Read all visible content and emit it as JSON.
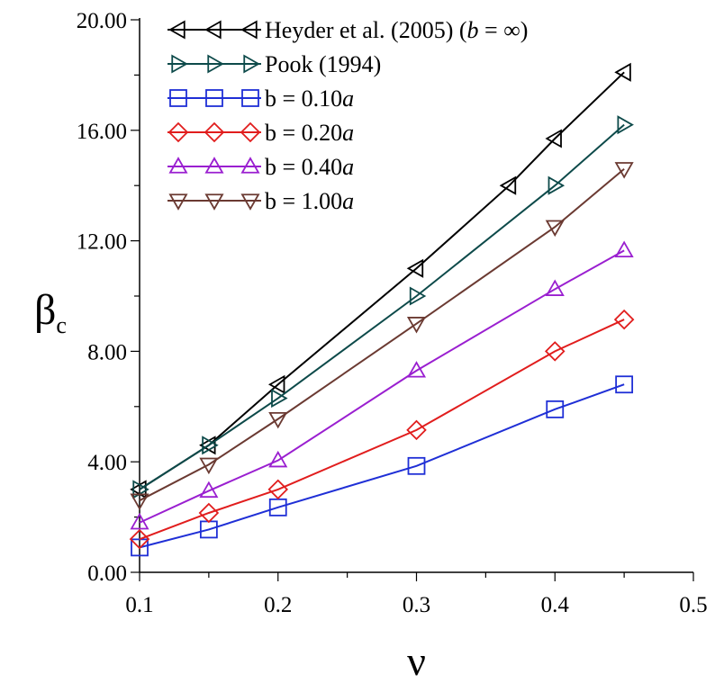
{
  "chart_data": {
    "type": "line",
    "xlabel": "ν",
    "ylabel": {
      "base": "β",
      "subscript": "c"
    },
    "xlim": [
      0.1,
      0.5
    ],
    "ylim": [
      0,
      20
    ],
    "xticks": [
      0.1,
      0.2,
      0.3,
      0.4,
      0.5
    ],
    "yticks": [
      0,
      4,
      8,
      12,
      16,
      20
    ],
    "xtick_labels": [
      "0.1",
      "0.2",
      "0.3",
      "0.4",
      "0.5"
    ],
    "ytick_labels": [
      "0.00",
      "4.00",
      "8.00",
      "12.00",
      "16.00",
      "20.00"
    ],
    "grid": false,
    "legend_placement": "top-left",
    "series": [
      {
        "name": "Heyder et al. (2005) (b = ∞)",
        "legend_parts": [
          {
            "text": "Heyder et al. (2005) (",
            "italic": false
          },
          {
            "text": "b",
            "italic": true
          },
          {
            "text": " = ∞)",
            "italic": false
          }
        ],
        "color": "#000000",
        "marker": "triangle-left",
        "x": [
          0.1,
          0.15,
          0.2,
          0.3,
          0.367,
          0.4,
          0.45
        ],
        "y": [
          3.0,
          4.6,
          6.8,
          11.0,
          14.0,
          15.7,
          18.1
        ]
      },
      {
        "name": "Pook (1994)",
        "legend_parts": [
          {
            "text": "Pook (1994)",
            "italic": false
          }
        ],
        "color": "#0d4a4a",
        "marker": "triangle-right",
        "x": [
          0.1,
          0.15,
          0.2,
          0.3,
          0.4,
          0.45
        ],
        "y": [
          3.0,
          4.6,
          6.3,
          10.0,
          14.0,
          16.2
        ]
      },
      {
        "name": "b = 0.10a",
        "legend_parts": [
          {
            "text": "b = 0.10",
            "italic": false
          },
          {
            "text": "a",
            "italic": true
          }
        ],
        "color": "#1f2fd6",
        "marker": "square",
        "x": [
          0.1,
          0.15,
          0.2,
          0.3,
          0.4,
          0.45
        ],
        "y": [
          0.9,
          1.55,
          2.35,
          3.85,
          5.9,
          6.8
        ]
      },
      {
        "name": "b = 0.20a",
        "legend_parts": [
          {
            "text": "b = 0.20",
            "italic": false
          },
          {
            "text": "a",
            "italic": true
          }
        ],
        "color": "#e11d1d",
        "marker": "diamond",
        "x": [
          0.1,
          0.15,
          0.2,
          0.3,
          0.4,
          0.45
        ],
        "y": [
          1.2,
          2.15,
          3.0,
          5.15,
          8.0,
          9.15
        ]
      },
      {
        "name": "b = 0.40a",
        "legend_parts": [
          {
            "text": "b = 0.40",
            "italic": false
          },
          {
            "text": "a",
            "italic": true
          }
        ],
        "color": "#9a1fd0",
        "marker": "triangle-up",
        "x": [
          0.1,
          0.15,
          0.2,
          0.3,
          0.4,
          0.45
        ],
        "y": [
          1.8,
          2.95,
          4.05,
          7.3,
          10.25,
          11.65
        ]
      },
      {
        "name": "b = 1.00a",
        "legend_parts": [
          {
            "text": "b = 1.00",
            "italic": false
          },
          {
            "text": "a",
            "italic": true
          }
        ],
        "color": "#6b3a32",
        "marker": "triangle-down",
        "x": [
          0.1,
          0.15,
          0.2,
          0.3,
          0.4,
          0.45
        ],
        "y": [
          2.6,
          3.9,
          5.55,
          9.0,
          12.5,
          14.6
        ]
      }
    ]
  }
}
